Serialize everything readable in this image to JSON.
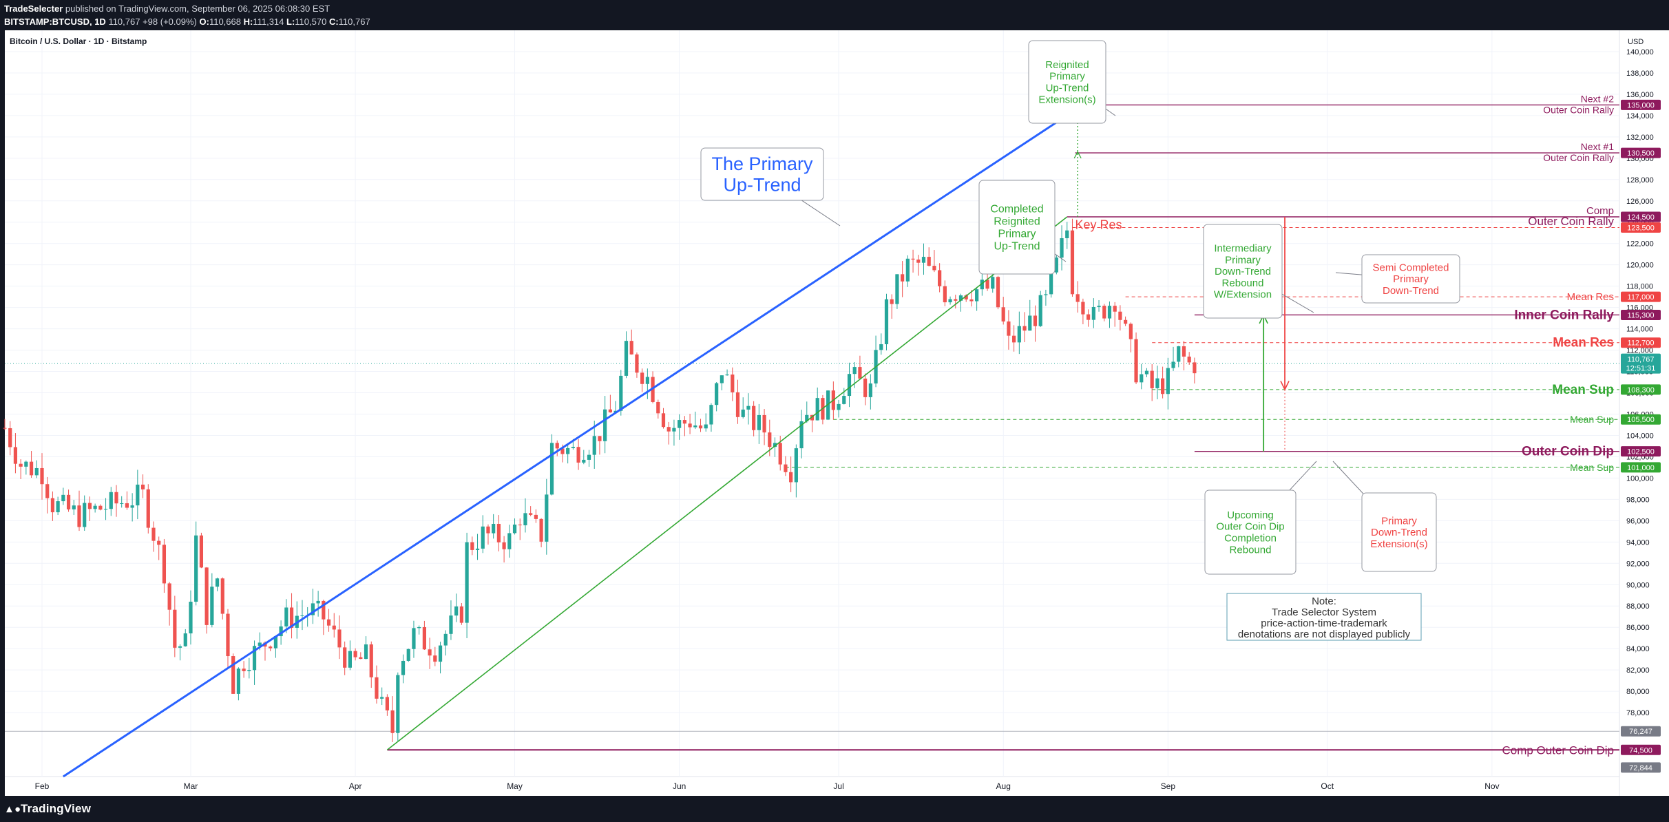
{
  "header": {
    "author": "TradeSelecter",
    "published": "published on TradingView.com, September 06, 2025 06:08:30 EST",
    "symbol": "BITSTAMP:BTCUSD, 1D",
    "last": "110,767",
    "change": "+98 (+0.09%)",
    "o_label": "O:",
    "o": "110,668",
    "h_label": "H:",
    "h": "111,314",
    "l_label": "L:",
    "l": "110,570",
    "c_label": "C:",
    "c": "110,767"
  },
  "footer": {
    "logo": "TradingView"
  },
  "colors": {
    "up": "#26a69a",
    "down": "#ef5350",
    "blue": "#2962ff",
    "green": "#33a833",
    "purple": "#8e1a5d",
    "red": "#ef4444",
    "bg": "#ffffff"
  },
  "chart_data": {
    "type": "candlestick",
    "title": "Bitcoin / U.S. Dollar · 1D · Bitstamp",
    "currency": "USD",
    "ylim": [
      72000,
      142000
    ],
    "y_ticks": [
      "78,000",
      "80,000",
      "82,000",
      "84,000",
      "86,000",
      "88,000",
      "90,000",
      "92,000",
      "94,000",
      "96,000",
      "98,000",
      "100,000",
      "102,000",
      "104,000",
      "106,000",
      "108,000",
      "110,000",
      "112,000",
      "114,000",
      "116,000",
      "118,000",
      "120,000",
      "122,000",
      "124,000",
      "126,000",
      "128,000",
      "130,000",
      "132,000",
      "134,000",
      "136,000",
      "138,000",
      "140,000"
    ],
    "x_ticks": [
      {
        "label": "Feb",
        "date": "2025-02-01"
      },
      {
        "label": "Mar",
        "date": "2025-03-01"
      },
      {
        "label": "Apr",
        "date": "2025-04-01"
      },
      {
        "label": "May",
        "date": "2025-05-01"
      },
      {
        "label": "Jun",
        "date": "2025-06-01"
      },
      {
        "label": "Jul",
        "date": "2025-07-01"
      },
      {
        "label": "Aug",
        "date": "2025-08-01"
      },
      {
        "label": "Sep",
        "date": "2025-09-01"
      },
      {
        "label": "Oct",
        "date": "2025-10-01"
      },
      {
        "label": "Nov",
        "date": "2025-11-01"
      }
    ],
    "x_range": [
      "2025-01-25",
      "2025-11-25"
    ],
    "closes": [
      [
        "2025-01-25",
        104700
      ],
      [
        "2025-01-28",
        101300
      ],
      [
        "2025-02-01",
        100600
      ],
      [
        "2025-02-03",
        97600
      ],
      [
        "2025-02-08",
        96500
      ],
      [
        "2025-02-14",
        97500
      ],
      [
        "2025-02-20",
        98300
      ],
      [
        "2025-02-24",
        91400
      ],
      [
        "2025-02-26",
        84200
      ],
      [
        "2025-02-28",
        84400
      ],
      [
        "2025-03-02",
        94200
      ],
      [
        "2025-03-04",
        87300
      ],
      [
        "2025-03-06",
        90600
      ],
      [
        "2025-03-09",
        80700
      ],
      [
        "2025-03-11",
        82900
      ],
      [
        "2025-03-14",
        84000
      ],
      [
        "2025-03-19",
        86800
      ],
      [
        "2025-03-24",
        87500
      ],
      [
        "2025-03-26",
        86900
      ],
      [
        "2025-03-31",
        82500
      ],
      [
        "2025-04-03",
        83200
      ],
      [
        "2025-04-06",
        78400
      ],
      [
        "2025-04-08",
        76300
      ],
      [
        "2025-04-09",
        82600
      ],
      [
        "2025-04-12",
        85300
      ],
      [
        "2025-04-16",
        84000
      ],
      [
        "2025-04-21",
        87500
      ],
      [
        "2025-04-22",
        93400
      ],
      [
        "2025-04-25",
        94700
      ],
      [
        "2025-04-30",
        94200
      ],
      [
        "2025-05-02",
        96500
      ],
      [
        "2025-05-06",
        94700
      ],
      [
        "2025-05-08",
        103000
      ],
      [
        "2025-05-12",
        102500
      ],
      [
        "2025-05-16",
        103500
      ],
      [
        "2025-05-20",
        106800
      ],
      [
        "2025-05-22",
        111700
      ],
      [
        "2025-05-26",
        109400
      ],
      [
        "2025-05-30",
        104600
      ],
      [
        "2025-06-03",
        105400
      ],
      [
        "2025-06-06",
        104300
      ],
      [
        "2025-06-09",
        110200
      ],
      [
        "2025-06-13",
        105900
      ],
      [
        "2025-06-17",
        104500
      ],
      [
        "2025-06-22",
        100900
      ],
      [
        "2025-06-24",
        106000
      ],
      [
        "2025-06-30",
        107100
      ],
      [
        "2025-07-03",
        109600
      ],
      [
        "2025-07-07",
        108200
      ],
      [
        "2025-07-10",
        116000
      ],
      [
        "2025-07-14",
        119900
      ],
      [
        "2025-07-17",
        120100
      ],
      [
        "2025-07-21",
        117400
      ],
      [
        "2025-07-25",
        117600
      ],
      [
        "2025-07-30",
        117800
      ],
      [
        "2025-08-02",
        112600
      ],
      [
        "2025-08-05",
        114100
      ],
      [
        "2025-08-09",
        116500
      ],
      [
        "2025-08-13",
        123300
      ],
      [
        "2025-08-14",
        118300
      ],
      [
        "2025-08-18",
        115000
      ],
      [
        "2025-08-22",
        116900
      ],
      [
        "2025-08-26",
        110100
      ],
      [
        "2025-08-29",
        108400
      ],
      [
        "2025-09-01",
        109200
      ],
      [
        "2025-09-03",
        111700
      ],
      [
        "2025-09-05",
        110668
      ],
      [
        "2025-09-06",
        110767
      ]
    ],
    "current_price": {
      "value": 110767,
      "label": "110,767",
      "countdown": "12:51:31"
    },
    "price_tags": [
      {
        "value": 135000,
        "label": "135,000",
        "color": "#8e1a5d"
      },
      {
        "value": 130500,
        "label": "130,500",
        "color": "#8e1a5d"
      },
      {
        "value": 124500,
        "label": "124,500",
        "color": "#8e1a5d"
      },
      {
        "value": 123500,
        "label": "123,500",
        "color": "#ef4444"
      },
      {
        "value": 117000,
        "label": "117,000",
        "color": "#ef4444"
      },
      {
        "value": 115300,
        "label": "115,300",
        "color": "#8e1a5d"
      },
      {
        "value": 112700,
        "label": "112,700",
        "color": "#ef4444"
      },
      {
        "value": 108300,
        "label": "108,300",
        "color": "#33a833"
      },
      {
        "value": 105500,
        "label": "105,500",
        "color": "#33a833"
      },
      {
        "value": 102500,
        "label": "102,500",
        "color": "#8e1a5d"
      },
      {
        "value": 101000,
        "label": "101,000",
        "color": "#33a833"
      },
      {
        "value": 76247,
        "label": "76,247",
        "color": "#787b86"
      },
      {
        "value": 74500,
        "label": "74,500",
        "color": "#8e1a5d"
      },
      {
        "value": 72844,
        "label": "72,844",
        "color": "#787b86"
      }
    ],
    "levels": [
      {
        "name": "next2",
        "value": 135000,
        "color": "#8e1a5d",
        "labels": [
          "Next #2",
          "Outer Coin Rally"
        ]
      },
      {
        "name": "next1",
        "value": 130500,
        "color": "#8e1a5d",
        "labels": [
          "Next #1",
          "Outer Coin Rally"
        ]
      },
      {
        "name": "comp",
        "value": 124500,
        "color": "#8e1a5d",
        "labels": [
          "Comp",
          "Outer Coin Rally"
        ]
      },
      {
        "name": "keyres",
        "value": 123500,
        "color": "#ef4444",
        "labels": [
          "Key Res"
        ]
      },
      {
        "name": "meanres1",
        "value": 117000,
        "color": "#ef4444",
        "labels": [
          "Mean Res"
        ]
      },
      {
        "name": "icr",
        "value": 115300,
        "color": "#8e1a5d",
        "labels": [
          "Inner Coin Rally"
        ]
      },
      {
        "name": "meanres2",
        "value": 112700,
        "color": "#ef4444",
        "labels": [
          "Mean Res"
        ]
      },
      {
        "name": "meansup1",
        "value": 108300,
        "color": "#33a833",
        "labels": [
          "Mean Sup"
        ]
      },
      {
        "name": "meansup2",
        "value": 105500,
        "color": "#33a833",
        "labels": [
          "Mean Sup"
        ]
      },
      {
        "name": "ocd",
        "value": 102500,
        "color": "#8e1a5d",
        "labels": [
          "Outer Coin Dip"
        ]
      },
      {
        "name": "meansup3",
        "value": 101000,
        "color": "#33a833",
        "labels": [
          "Mean Sup"
        ]
      },
      {
        "name": "cocd",
        "value": 74500,
        "color": "#8e1a5d",
        "labels": [
          "Comp Outer Coin Dip"
        ]
      }
    ],
    "trendlines": [
      {
        "name": "blue-uptrend",
        "color": "#2962ff",
        "from": [
          "2025-02-05",
          72000
        ],
        "to": [
          "2025-08-16",
          135000
        ]
      },
      {
        "name": "green-uptrend",
        "color": "#33a833",
        "from": [
          "2025-04-07",
          74500
        ],
        "to": [
          "2025-08-13",
          124500
        ]
      }
    ],
    "callouts": [
      {
        "name": "primary-uptrend",
        "lines": [
          "The Primary",
          "Up-Trend"
        ],
        "color": "#2962ff"
      },
      {
        "name": "completed-reignited",
        "lines": [
          "Completed",
          "Reignited",
          "Primary",
          "Up-Trend"
        ],
        "color": "#33a833"
      },
      {
        "name": "reignited-extension",
        "lines": [
          "Reignited",
          "Primary",
          "Up-Trend",
          "Extension(s)"
        ],
        "color": "#33a833"
      },
      {
        "name": "intermediary",
        "lines": [
          "Intermediary",
          "Primary",
          "Down-Trend",
          "Rebound",
          "W/Extension"
        ],
        "color": "#33a833"
      },
      {
        "name": "semi-completed",
        "lines": [
          "Semi Completed",
          "Primary",
          "Down-Trend"
        ],
        "color": "#ef4444"
      },
      {
        "name": "upcoming-ocd",
        "lines": [
          "Upcoming",
          "Outer Coin Dip",
          "Completion",
          "Rebound"
        ],
        "color": "#33a833"
      },
      {
        "name": "primary-downtrend-ext",
        "lines": [
          "Primary",
          "Down-Trend",
          "Extension(s)"
        ],
        "color": "#ef4444"
      }
    ],
    "note": {
      "lines": [
        "Note:",
        "Trade Selector System",
        "price-action-time-trademark",
        "denotations are not displayed publicly"
      ]
    }
  }
}
